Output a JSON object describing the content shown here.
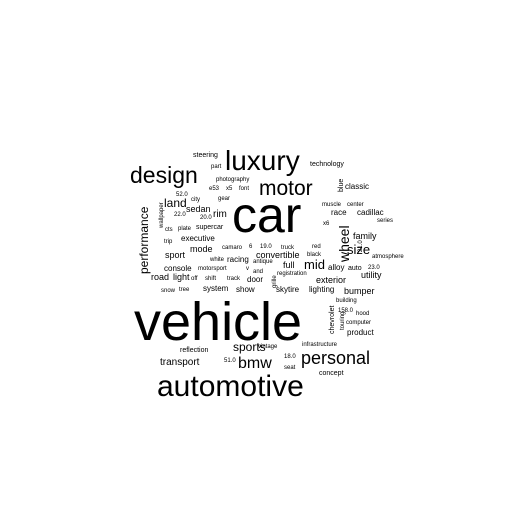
{
  "word_cloud": {
    "text_color": "#000000",
    "background_color": "#ffffff",
    "words": [
      "vehicle",
      "car",
      "automotive",
      "luxury",
      "design",
      "motor",
      "personal",
      "bmw",
      "wheel",
      "performance",
      "mid",
      "size",
      "sports",
      "land",
      "sedan",
      "rim",
      "family",
      "convertible",
      "exterior",
      "bumper",
      "transport",
      "sport",
      "mode",
      "executive",
      "system",
      "show",
      "skytire",
      "lighting",
      "utility",
      "console",
      "racing",
      "full",
      "road",
      "light",
      "cadillac",
      "race",
      "chevrolet",
      "classic",
      "blue",
      "technology",
      "steering",
      "supercar",
      "concept",
      "reflection",
      "product",
      "alloy",
      "auto",
      "atmosphere",
      "motorsport",
      "camaro",
      "truck",
      "black",
      "door",
      "grille",
      "registration",
      "building",
      "hood",
      "computer",
      "infrastructure",
      "vintage",
      "antique",
      "tree",
      "snow",
      "off",
      "shift",
      "track",
      "seat",
      "white",
      "red",
      "and",
      "trip",
      "cts",
      "plate",
      "city",
      "gear",
      "photography",
      "part",
      "font",
      "muscle",
      "center",
      "series",
      "wallpaper",
      "touring",
      "e53",
      "x5",
      "x6",
      "v",
      "52.0",
      "22.0",
      "20.0",
      "19.0",
      "21.0",
      "23.0",
      "18.0",
      "51.0",
      "158.0",
      "6"
    ]
  }
}
